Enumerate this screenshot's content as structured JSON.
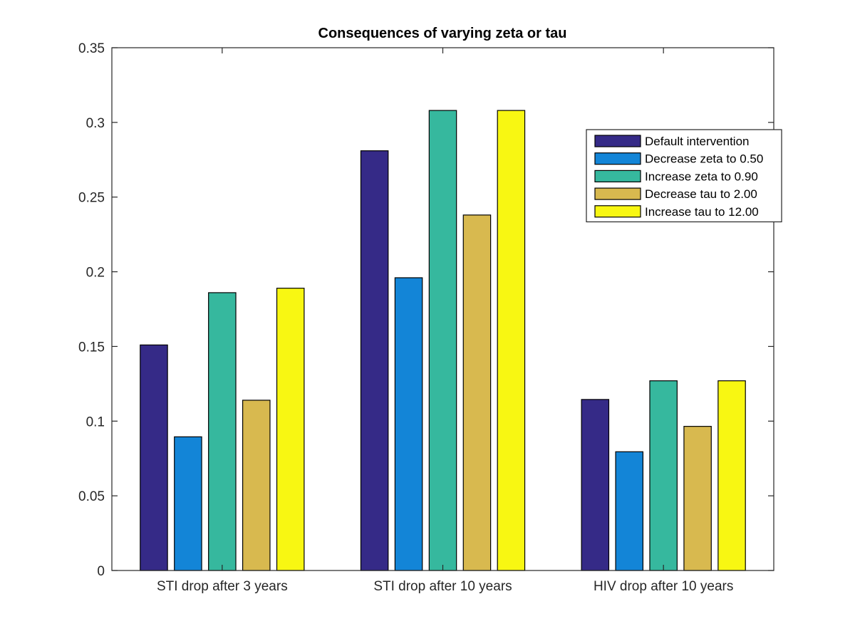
{
  "chart_data": {
    "type": "bar",
    "title": "Consequences of varying zeta or tau",
    "xlabel": "",
    "ylabel": "",
    "categories": [
      "STI drop after 3 years",
      "STI drop after 10 years",
      "HIV drop after 10 years"
    ],
    "series": [
      {
        "name": "Default intervention",
        "color": "#352a87",
        "values": [
          0.151,
          0.281,
          0.1145
        ]
      },
      {
        "name": "Decrease zeta to 0.50",
        "color": "#1385d7",
        "values": [
          0.0895,
          0.196,
          0.0795
        ]
      },
      {
        "name": "Increase zeta to 0.90",
        "color": "#36b89e",
        "values": [
          0.186,
          0.308,
          0.127
        ]
      },
      {
        "name": "Decrease tau to 2.00",
        "color": "#d8b94f",
        "values": [
          0.114,
          0.238,
          0.0965
        ]
      },
      {
        "name": "Increase tau to 12.00",
        "color": "#f8f712",
        "values": [
          0.189,
          0.308,
          0.127
        ]
      }
    ],
    "ylim": [
      0,
      0.35
    ],
    "yticks": [
      0,
      0.05,
      0.1,
      0.15,
      0.2,
      0.25,
      0.3,
      0.35
    ],
    "ytick_labels": [
      "0",
      "0.05",
      "0.1",
      "0.15",
      "0.2",
      "0.25",
      "0.3",
      "0.35"
    ],
    "grid": false,
    "legend_position": "top-right"
  }
}
